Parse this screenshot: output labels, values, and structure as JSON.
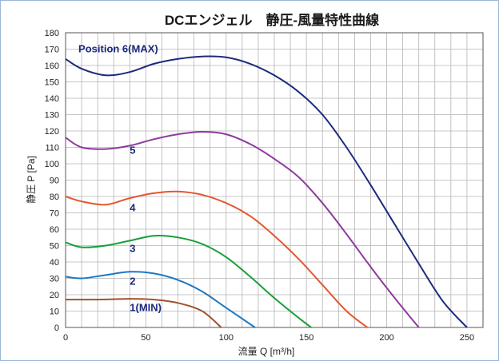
{
  "chart_data": {
    "type": "line",
    "title": "DCエンジェル　静圧-風量特性曲線",
    "xlabel": "流量 Q [m³/h]",
    "ylabel": "静圧 P [Pa]",
    "xlim": [
      0,
      260
    ],
    "ylim": [
      0,
      180
    ],
    "x_ticks": [
      0,
      50,
      100,
      150,
      200,
      250
    ],
    "y_ticks": [
      0,
      10,
      20,
      30,
      40,
      50,
      60,
      70,
      80,
      90,
      100,
      110,
      120,
      130,
      140,
      150,
      160,
      170,
      180
    ],
    "grid": true,
    "series": [
      {
        "name": "1(MIN)",
        "color": "#a0522d",
        "points": [
          [
            0,
            17
          ],
          [
            20,
            17
          ],
          [
            40,
            17.5
          ],
          [
            55,
            17
          ],
          [
            70,
            15
          ],
          [
            85,
            10
          ],
          [
            97,
            0
          ]
        ]
      },
      {
        "name": "2",
        "color": "#1f78c1",
        "points": [
          [
            0,
            31
          ],
          [
            10,
            30
          ],
          [
            25,
            32
          ],
          [
            40,
            34
          ],
          [
            55,
            33
          ],
          [
            70,
            29
          ],
          [
            85,
            22
          ],
          [
            100,
            12
          ],
          [
            118,
            0
          ]
        ]
      },
      {
        "name": "3",
        "color": "#1a9e3a",
        "points": [
          [
            0,
            52
          ],
          [
            10,
            49
          ],
          [
            25,
            50
          ],
          [
            40,
            53
          ],
          [
            55,
            56
          ],
          [
            70,
            55
          ],
          [
            85,
            51
          ],
          [
            100,
            43
          ],
          [
            115,
            31
          ],
          [
            130,
            18
          ],
          [
            145,
            6
          ],
          [
            153,
            0
          ]
        ]
      },
      {
        "name": "4",
        "color": "#e4572e",
        "points": [
          [
            0,
            80
          ],
          [
            10,
            77
          ],
          [
            25,
            75
          ],
          [
            40,
            79
          ],
          [
            55,
            82
          ],
          [
            70,
            83
          ],
          [
            85,
            81
          ],
          [
            100,
            76
          ],
          [
            115,
            68
          ],
          [
            130,
            56
          ],
          [
            145,
            42
          ],
          [
            160,
            26
          ],
          [
            175,
            10
          ],
          [
            188,
            0
          ]
        ]
      },
      {
        "name": "5",
        "color": "#8e3a9d",
        "points": [
          [
            0,
            116
          ],
          [
            10,
            110
          ],
          [
            25,
            109
          ],
          [
            40,
            111
          ],
          [
            55,
            115
          ],
          [
            70,
            118
          ],
          [
            85,
            119.5
          ],
          [
            100,
            118
          ],
          [
            115,
            112
          ],
          [
            130,
            103
          ],
          [
            145,
            92
          ],
          [
            160,
            76
          ],
          [
            175,
            57
          ],
          [
            190,
            37
          ],
          [
            205,
            18
          ],
          [
            220,
            0
          ]
        ]
      },
      {
        "name": "Position  6(MAX)",
        "color": "#1c2a7c",
        "points": [
          [
            0,
            164
          ],
          [
            10,
            158
          ],
          [
            25,
            154
          ],
          [
            40,
            156
          ],
          [
            55,
            161
          ],
          [
            70,
            164
          ],
          [
            85,
            165.5
          ],
          [
            100,
            165
          ],
          [
            115,
            161
          ],
          [
            130,
            154
          ],
          [
            145,
            144
          ],
          [
            160,
            130
          ],
          [
            175,
            110
          ],
          [
            190,
            87
          ],
          [
            205,
            63
          ],
          [
            220,
            39
          ],
          [
            235,
            16
          ],
          [
            250,
            0
          ]
        ]
      }
    ],
    "series_labels": [
      {
        "text": "Position  6(MAX)",
        "x": 8,
        "y": 168,
        "color": "#1c2a7c"
      },
      {
        "text": "5",
        "x": 40,
        "y": 106,
        "color": "#1c2a7c"
      },
      {
        "text": "4",
        "x": 40,
        "y": 71,
        "color": "#1c2a7c"
      },
      {
        "text": "3",
        "x": 40,
        "y": 46,
        "color": "#1c2a7c"
      },
      {
        "text": "2",
        "x": 40,
        "y": 26,
        "color": "#1c2a7c"
      },
      {
        "text": "1(MIN)",
        "x": 40,
        "y": 10,
        "color": "#1c2a7c"
      }
    ]
  }
}
